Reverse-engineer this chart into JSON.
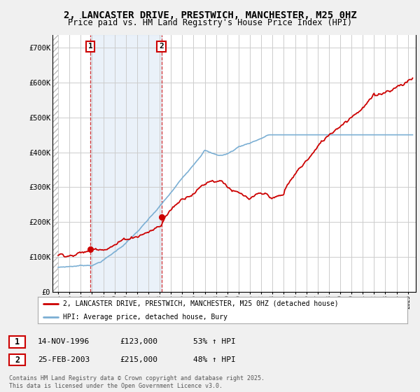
{
  "title": "2, LANCASTER DRIVE, PRESTWICH, MANCHESTER, M25 0HZ",
  "subtitle": "Price paid vs. HM Land Registry's House Price Index (HPI)",
  "legend_line1": "2, LANCASTER DRIVE, PRESTWICH, MANCHESTER, M25 0HZ (detached house)",
  "legend_line2": "HPI: Average price, detached house, Bury",
  "footer": "Contains HM Land Registry data © Crown copyright and database right 2025.\nThis data is licensed under the Open Government Licence v3.0.",
  "sale1_date": "14-NOV-1996",
  "sale1_price": "£123,000",
  "sale1_hpi": "53% ↑ HPI",
  "sale2_date": "25-FEB-2003",
  "sale2_price": "£215,000",
  "sale2_hpi": "48% ↑ HPI",
  "red_color": "#cc0000",
  "blue_color": "#7bafd4",
  "blue_fill": "#dce8f5",
  "background_color": "#f0f0f0",
  "plot_bg_color": "#ffffff",
  "hatch_color": "#cccccc",
  "grid_color": "#cccccc",
  "sale1_x": 1996.87,
  "sale1_y": 123000,
  "sale2_x": 2003.15,
  "sale2_y": 215000,
  "xmin": 1993.5,
  "xmax": 2025.7,
  "ymin": 0,
  "ymax": 735000,
  "yticks": [
    0,
    100000,
    200000,
    300000,
    400000,
    500000,
    600000,
    700000
  ],
  "ytick_labels": [
    "£0",
    "£100K",
    "£200K",
    "£300K",
    "£400K",
    "£500K",
    "£600K",
    "£700K"
  ]
}
